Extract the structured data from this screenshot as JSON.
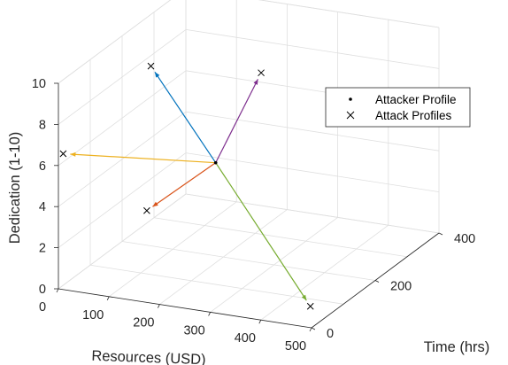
{
  "chart_data": {
    "type": "scatter3d",
    "xlabel": "Resources (USD)",
    "ylabel": "Time (hrs)",
    "zlabel": "Dedication (1-10)",
    "xlim": [
      0,
      500
    ],
    "ylim": [
      0,
      400
    ],
    "zlim": [
      0,
      10
    ],
    "xticks": [
      "0",
      "100",
      "200",
      "300",
      "400",
      "500"
    ],
    "yticks": [
      "0",
      "200",
      "400"
    ],
    "zticks": [
      "0",
      "2",
      "4",
      "6",
      "8",
      "10"
    ],
    "grid": true,
    "box": true,
    "legend_position": "top-right",
    "legend": [
      {
        "label": "Attacker Profile",
        "marker": "dot"
      },
      {
        "label": "Attack Profiles",
        "marker": "x"
      }
    ],
    "attacker_profile": {
      "x": 188,
      "y": 195,
      "z": 4.6
    },
    "attack_profiles": [
      {
        "x": 82,
        "y": 160,
        "z": 9.3,
        "color": "#0072BD"
      },
      {
        "x": 155,
        "y": 390,
        "z": 6.6,
        "color": "#7E2F8E"
      },
      {
        "x": 0,
        "y": 15,
        "z": 6.4,
        "color": "#EDB120"
      },
      {
        "x": 460,
        "y": 60,
        "z": 0.2,
        "color": "#77AC30"
      },
      {
        "x": 140,
        "y": 55,
        "z": 3.7,
        "color": "#D95319"
      }
    ]
  }
}
